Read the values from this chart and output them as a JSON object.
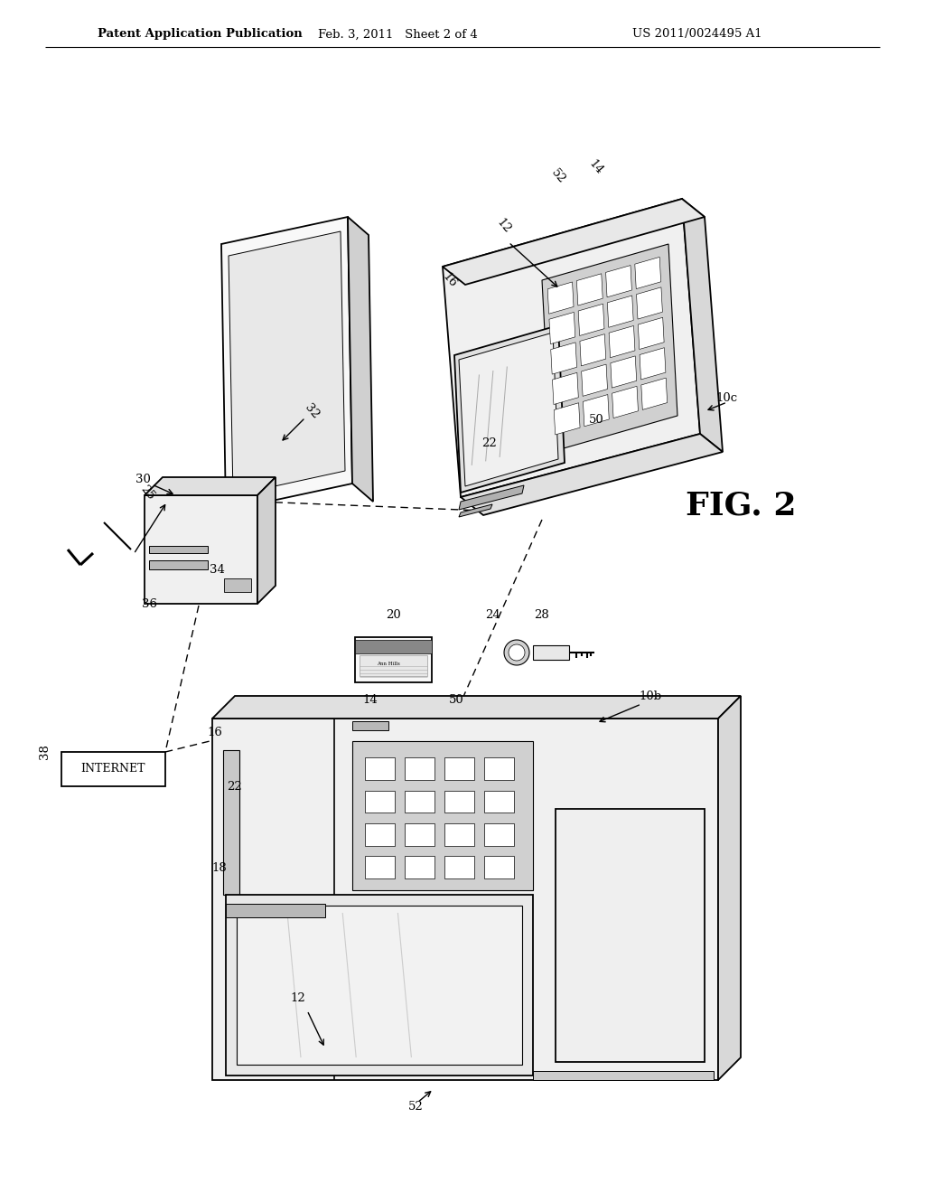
{
  "background_color": "#ffffff",
  "header_left": "Patent Application Publication",
  "header_mid": "Feb. 3, 2011   Sheet 2 of 4",
  "header_right": "US 2011/0024495 A1",
  "fig_label": "FIG. 2",
  "line_color": "#000000"
}
